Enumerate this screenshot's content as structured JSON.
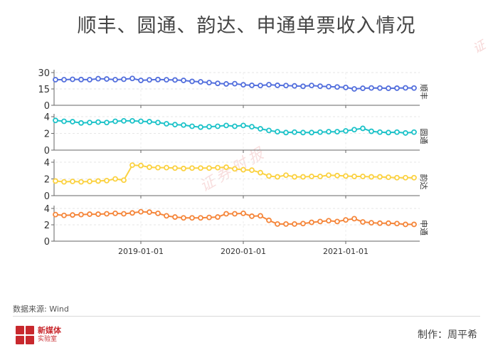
{
  "title": "顺丰、圆通、韵达、申通单票收入情况",
  "source": "数据来源: Wind",
  "author": "制作：周平希",
  "logo": {
    "line1": "新媒体",
    "line2": "实验室"
  },
  "watermark": "证券时报",
  "watermark_corner": "证",
  "chart_data": {
    "type": "line",
    "x": [
      "2018-03",
      "2018-04",
      "2018-05",
      "2018-06",
      "2018-07",
      "2018-08",
      "2018-09",
      "2018-10",
      "2018-11",
      "2018-12",
      "2019-01",
      "2019-02",
      "2019-03",
      "2019-04",
      "2019-05",
      "2019-06",
      "2019-07",
      "2019-08",
      "2019-09",
      "2019-10",
      "2019-11",
      "2019-12",
      "2020-01",
      "2020-02",
      "2020-03",
      "2020-04",
      "2020-05",
      "2020-06",
      "2020-07",
      "2020-08",
      "2020-09",
      "2020-10",
      "2020-11",
      "2020-12",
      "2021-01",
      "2021-02",
      "2021-03",
      "2021-04",
      "2021-05",
      "2021-06",
      "2021-07",
      "2021-08",
      "2021-09"
    ],
    "x_ticks": [
      "2019-01-01",
      "2020-01-01",
      "2021-01-01"
    ],
    "grid": true,
    "series": [
      {
        "name": "顺丰",
        "color": "#5470dd",
        "ylim": [
          0,
          30
        ],
        "yticks": [
          0,
          15,
          30
        ],
        "values": [
          23.5,
          23.5,
          23.8,
          23.6,
          23.5,
          24.4,
          24.1,
          23.5,
          23.9,
          24.6,
          22.8,
          23.3,
          23.6,
          23.4,
          23.2,
          22.8,
          21.9,
          21.5,
          20.8,
          20.1,
          19.6,
          19.8,
          18.8,
          18.3,
          18.1,
          18.9,
          18.3,
          18.1,
          17.8,
          17.4,
          18.2,
          17.5,
          17.1,
          16.8,
          16.4,
          15.0,
          15.6,
          15.9,
          15.8,
          15.6,
          15.7,
          16.0,
          15.8
        ]
      },
      {
        "name": "圆通",
        "color": "#1ec3c9",
        "ylim": [
          0,
          4
        ],
        "yticks": [
          0,
          2,
          4
        ],
        "values": [
          3.55,
          3.45,
          3.4,
          3.25,
          3.3,
          3.35,
          3.3,
          3.45,
          3.5,
          3.5,
          3.45,
          3.4,
          3.3,
          3.15,
          3.05,
          3.0,
          2.85,
          2.75,
          2.8,
          2.85,
          2.95,
          2.85,
          2.95,
          2.8,
          2.55,
          2.35,
          2.2,
          2.1,
          2.15,
          2.1,
          2.1,
          2.15,
          2.2,
          2.2,
          2.3,
          2.45,
          2.6,
          2.25,
          2.15,
          2.1,
          2.15,
          2.05,
          2.15
        ]
      },
      {
        "name": "韵达",
        "color": "#fbd242",
        "ylim": [
          0,
          4
        ],
        "yticks": [
          0,
          2,
          4
        ],
        "values": [
          1.75,
          1.65,
          1.7,
          1.65,
          1.7,
          1.75,
          1.8,
          2.0,
          1.85,
          3.65,
          3.6,
          3.4,
          3.35,
          3.35,
          3.3,
          3.25,
          3.3,
          3.3,
          3.3,
          3.35,
          3.4,
          3.2,
          3.1,
          3.05,
          2.75,
          2.35,
          2.25,
          2.45,
          2.25,
          2.25,
          2.3,
          2.3,
          2.45,
          2.4,
          2.35,
          2.3,
          2.3,
          2.25,
          2.25,
          2.2,
          2.15,
          2.15,
          2.15
        ]
      },
      {
        "name": "申通",
        "color": "#f5873c",
        "ylim": [
          0,
          4
        ],
        "yticks": [
          0,
          2,
          4
        ],
        "values": [
          3.25,
          3.15,
          3.2,
          3.25,
          3.3,
          3.3,
          3.35,
          3.4,
          3.35,
          3.45,
          3.6,
          3.55,
          3.4,
          3.1,
          2.95,
          2.85,
          2.85,
          2.85,
          2.9,
          2.95,
          3.35,
          3.35,
          3.4,
          3.05,
          3.1,
          2.55,
          2.1,
          2.1,
          2.1,
          2.15,
          2.3,
          2.4,
          2.5,
          2.4,
          2.6,
          2.75,
          2.35,
          2.25,
          2.2,
          2.2,
          2.15,
          2.05,
          2.05
        ]
      }
    ]
  }
}
